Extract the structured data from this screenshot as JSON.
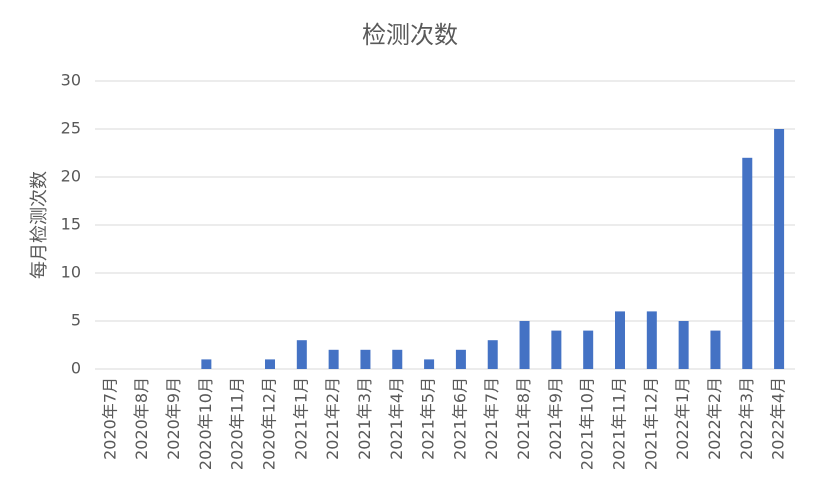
{
  "chart_data": {
    "type": "bar",
    "title": "检测次数",
    "y_label": "每月检测次数",
    "categories": [
      "2020年7月",
      "2020年8月",
      "2020年9月",
      "2020年10月",
      "2020年11月",
      "2020年12月",
      "2021年1月",
      "2021年2月",
      "2021年3月",
      "2021年4月",
      "2021年5月",
      "2021年6月",
      "2021年7月",
      "2021年8月",
      "2021年9月",
      "2021年10月",
      "2021年11月",
      "2021年12月",
      "2022年1月",
      "2022年2月",
      "2022年3月",
      "2022年4月"
    ],
    "values": [
      0,
      0,
      0,
      1,
      0,
      1,
      3,
      2,
      2,
      2,
      1,
      2,
      3,
      5,
      4,
      4,
      6,
      6,
      5,
      4,
      22,
      25
    ],
    "color": "#4472c4",
    "ylim": [
      0,
      30
    ],
    "yticks": [
      0,
      5,
      10,
      15,
      20,
      25,
      30
    ],
    "grid": true
  }
}
